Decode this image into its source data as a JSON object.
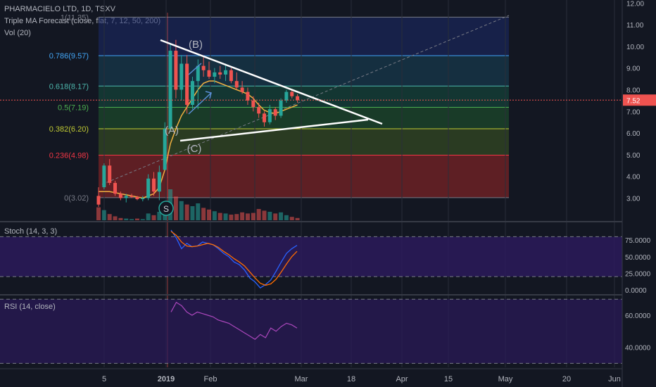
{
  "header": {
    "title": "PHARMACIELO LTD, 1D, TSXV",
    "indicator": "Triple MA Forecast (close, flat, 7, 12, 50, 200)",
    "volume": "Vol (20)"
  },
  "colors": {
    "background": "#131722",
    "grid": "#2a2e39",
    "up": "#26a69a",
    "down": "#ef5350",
    "stoch_k": "#2962ff",
    "stoch_d": "#ff6d00",
    "rsi": "#ab47bc",
    "ma": "#f0b040",
    "pane_fill": "#2b1a5a",
    "price_label_bg": "#ef5350"
  },
  "chart_data": [
    {
      "type": "candlestick",
      "pane": "price",
      "price_scale": [
        "12.00",
        "11.00",
        "10.00",
        "9.00",
        "8.00",
        "7.00",
        "6.00",
        "5.00",
        "4.00",
        "3.00"
      ],
      "ylim": [
        2.4,
        12.2
      ],
      "last_price": "7.52",
      "fib_levels": [
        {
          "label": "0(3.02)",
          "value": 3.02,
          "color": "#787b86",
          "fill": "#9c2727"
        },
        {
          "label": "0.236(4.98)",
          "value": 4.98,
          "color": "#f23645",
          "fill": "#3e5a23"
        },
        {
          "label": "0.382(6.20)",
          "value": 6.2,
          "color": "#c0ca33",
          "fill": "#1f5a2e"
        },
        {
          "label": "0.5(7.19)",
          "value": 7.19,
          "color": "#4caf50",
          "fill": "#14513f"
        },
        {
          "label": "0.618(8.17)",
          "value": 8.17,
          "color": "#4db6ac",
          "fill": "#17445a"
        },
        {
          "label": "0.786(9.57)",
          "value": 9.57,
          "color": "#42a5f5",
          "fill": "#1c2a6a"
        },
        {
          "label": "1(11.35)",
          "value": 11.35,
          "color": "#787b86",
          "fill": "#232a3a"
        }
      ],
      "wave_labels": [
        "(A)",
        "(B)",
        "(C)",
        "S"
      ],
      "candles": [
        [
          3.1,
          3.5,
          2.6,
          2.7
        ],
        [
          3.5,
          4.6,
          3.4,
          4.5
        ],
        [
          4.5,
          4.8,
          3.6,
          3.7
        ],
        [
          3.7,
          3.8,
          3.1,
          3.2
        ],
        [
          3.2,
          3.3,
          2.9,
          3.0
        ],
        [
          3.0,
          3.2,
          2.8,
          3.1
        ],
        [
          3.1,
          3.2,
          3.0,
          3.05
        ],
        [
          3.05,
          3.1,
          2.9,
          2.95
        ],
        [
          2.95,
          3.1,
          2.85,
          3.0
        ],
        [
          3.0,
          4.1,
          2.9,
          3.9
        ],
        [
          3.9,
          4.2,
          3.1,
          3.3
        ],
        [
          3.3,
          4.5,
          2.9,
          4.2
        ],
        [
          4.3,
          6.5,
          4.3,
          6.2
        ],
        [
          6.2,
          10.1,
          6.1,
          9.8
        ],
        [
          9.8,
          10.3,
          7.6,
          8.0
        ],
        [
          8.0,
          9.6,
          7.5,
          9.2
        ],
        [
          9.2,
          9.6,
          6.9,
          7.3
        ],
        [
          7.3,
          8.6,
          7.1,
          8.4
        ],
        [
          8.4,
          9.4,
          7.1,
          9.1
        ],
        [
          9.1,
          9.5,
          8.6,
          8.9
        ],
        [
          8.9,
          9.3,
          8.5,
          8.6
        ],
        [
          8.6,
          9.0,
          8.3,
          8.8
        ],
        [
          8.8,
          9.1,
          8.5,
          8.7
        ],
        [
          8.7,
          9.2,
          8.4,
          8.9
        ],
        [
          8.9,
          9.0,
          8.3,
          8.4
        ],
        [
          8.4,
          8.8,
          8.0,
          8.1
        ],
        [
          8.1,
          8.4,
          7.8,
          7.9
        ],
        [
          7.9,
          8.1,
          7.3,
          7.5
        ],
        [
          7.5,
          7.7,
          7.0,
          7.2
        ],
        [
          7.2,
          7.4,
          6.7,
          6.9
        ],
        [
          6.9,
          7.0,
          6.3,
          6.5
        ],
        [
          6.5,
          7.3,
          6.4,
          7.1
        ],
        [
          7.1,
          7.2,
          6.6,
          6.8
        ],
        [
          6.8,
          7.6,
          6.7,
          7.5
        ],
        [
          7.5,
          8.0,
          7.4,
          7.9
        ],
        [
          7.9,
          8.0,
          7.6,
          7.7
        ],
        [
          7.7,
          7.8,
          7.4,
          7.52
        ]
      ],
      "volumes": [
        [
          2.3,
          0
        ],
        [
          1.8,
          1
        ],
        [
          1.1,
          0
        ],
        [
          0.7,
          0
        ],
        [
          0.4,
          0
        ],
        [
          0.3,
          1
        ],
        [
          0.2,
          1
        ],
        [
          0.3,
          0
        ],
        [
          0.2,
          1
        ],
        [
          1.2,
          1
        ],
        [
          0.9,
          0
        ],
        [
          1.5,
          1
        ],
        [
          3.2,
          1
        ],
        [
          5.5,
          1
        ],
        [
          4.2,
          0
        ],
        [
          3.4,
          1
        ],
        [
          2.8,
          0
        ],
        [
          2.5,
          1
        ],
        [
          3.0,
          1
        ],
        [
          2.2,
          0
        ],
        [
          1.9,
          0
        ],
        [
          1.6,
          1
        ],
        [
          1.3,
          0
        ],
        [
          1.2,
          1
        ],
        [
          1.0,
          0
        ],
        [
          1.1,
          0
        ],
        [
          1.4,
          0
        ],
        [
          1.2,
          0
        ],
        [
          1.3,
          0
        ],
        [
          2.0,
          0
        ],
        [
          1.7,
          0
        ],
        [
          1.5,
          1
        ],
        [
          1.2,
          0
        ],
        [
          1.4,
          1
        ],
        [
          0.9,
          1
        ],
        [
          0.6,
          0
        ],
        [
          0.4,
          0
        ]
      ],
      "ma": [
        3.3,
        3.3,
        3.3,
        3.25,
        3.2,
        3.15,
        3.1,
        3.05,
        3.0,
        3.1,
        3.2,
        3.5,
        4.3,
        5.5,
        6.2,
        6.8,
        7.2,
        7.6,
        8.0,
        8.3,
        8.4,
        8.4,
        8.3,
        8.2,
        8.1,
        8.0,
        7.9,
        7.8,
        7.6,
        7.3,
        7.05,
        6.95,
        6.9,
        7.0,
        7.1,
        7.2,
        7.3
      ]
    },
    {
      "type": "line",
      "pane": "stoch",
      "title": "Stoch (14, 3, 3)",
      "scale": [
        "75.0000",
        "50.0000",
        "25.0000",
        "0.0000"
      ],
      "bands": [
        80,
        20
      ],
      "series": [
        {
          "values": [
            90,
            78,
            62,
            70,
            65,
            66,
            72,
            70,
            68,
            62,
            55,
            50,
            42,
            38,
            30,
            18,
            12,
            3,
            8,
            15,
            28,
            42,
            55,
            62,
            67
          ]
        },
        {
          "values": [
            88,
            82,
            72,
            66,
            65,
            66,
            68,
            70,
            68,
            64,
            58,
            53,
            47,
            42,
            36,
            27,
            18,
            10,
            7,
            9,
            16,
            27,
            39,
            50,
            58
          ]
        }
      ]
    },
    {
      "type": "line",
      "pane": "rsi",
      "title": "RSI (14, close)",
      "scale": [
        "60.0000",
        "40.0000"
      ],
      "bands": [
        70,
        30
      ],
      "series": [
        {
          "values": [
            62,
            68,
            66,
            62,
            60,
            62,
            61,
            60,
            59,
            57,
            56,
            55,
            53,
            51,
            49,
            47,
            45,
            48,
            46,
            52,
            50,
            53,
            55,
            54,
            52
          ]
        }
      ]
    }
  ],
  "x_axis": [
    "5",
    "2019",
    "Feb",
    "Mar",
    "18",
    "Apr",
    "15",
    "May",
    "20",
    "Jun"
  ]
}
